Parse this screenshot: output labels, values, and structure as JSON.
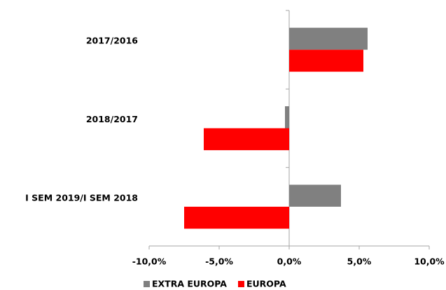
{
  "chart_data": {
    "type": "hbar",
    "categories": [
      "2017/2016",
      "2018/2017",
      "I SEM 2019/I SEM 2018"
    ],
    "series": [
      {
        "name": "EXTRA EUROPA",
        "color": "#808080",
        "values": [
          5.6,
          -0.3,
          3.7
        ]
      },
      {
        "name": "EUROPA",
        "color": "#ff0000",
        "values": [
          5.3,
          -6.1,
          -7.5
        ]
      }
    ],
    "xlim": [
      -10,
      10
    ],
    "xticks": [
      {
        "value": -10,
        "label": "-10,0%"
      },
      {
        "value": -5,
        "label": "-5,0%"
      },
      {
        "value": 0,
        "label": "0,0%"
      },
      {
        "value": 5,
        "label": "5,0%"
      },
      {
        "value": 10,
        "label": "10,0%"
      }
    ],
    "legend": "bottom"
  }
}
